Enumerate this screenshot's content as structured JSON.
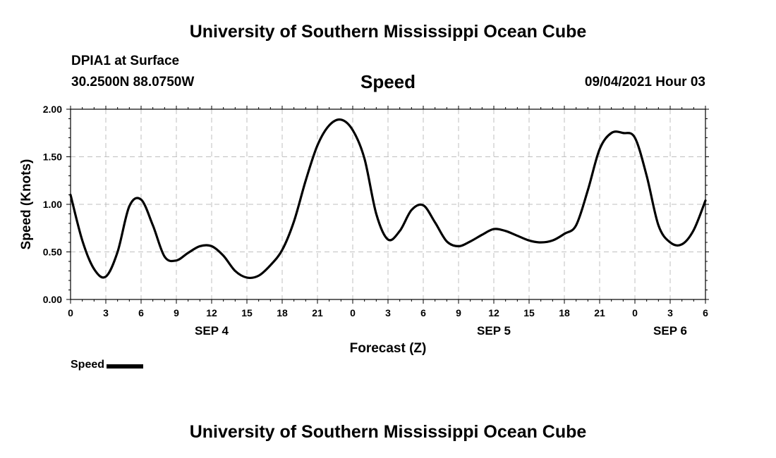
{
  "header": {
    "banner": "University of Southern Mississippi Ocean Cube",
    "station": "DPIA1 at Surface",
    "coords": "30.2500N  88.0750W",
    "plot_title": "Speed",
    "timestamp": "09/04/2021 Hour 03"
  },
  "footer": {
    "banner": "University of Southern Mississippi Ocean Cube"
  },
  "legend": {
    "label": "Speed",
    "color": "#000000"
  },
  "chart_data": {
    "type": "line",
    "title": "Speed",
    "xlabel": "Forecast (Z)",
    "ylabel": "Speed (Knots)",
    "xlim": [
      0,
      54
    ],
    "ylim": [
      0,
      2
    ],
    "grid": true,
    "legend_position": "bottom-left",
    "x_ticks": [
      0,
      3,
      6,
      9,
      12,
      15,
      18,
      21,
      24,
      27,
      30,
      33,
      36,
      39,
      42,
      45,
      48,
      51,
      54
    ],
    "x_tick_labels": [
      "0",
      "3",
      "6",
      "9",
      "12",
      "15",
      "18",
      "21",
      "0",
      "3",
      "6",
      "9",
      "12",
      "15",
      "18",
      "21",
      "0",
      "3",
      "6"
    ],
    "y_ticks": [
      0,
      0.5,
      1,
      1.5,
      2
    ],
    "y_tick_labels": [
      "0.00",
      "0.50",
      "1.00",
      "1.50",
      "2.00"
    ],
    "date_labels": [
      {
        "label": "SEP 4",
        "x": 12
      },
      {
        "label": "SEP 5",
        "x": 36
      },
      {
        "label": "SEP 6",
        "x": 51
      }
    ],
    "series": [
      {
        "name": "Speed",
        "color": "#000000",
        "x": [
          0,
          1,
          2,
          3,
          4,
          5,
          6,
          7,
          8,
          9,
          10,
          11,
          12,
          13,
          14,
          15,
          16,
          17,
          18,
          19,
          20,
          21,
          22,
          23,
          24,
          25,
          26,
          27,
          28,
          29,
          30,
          31,
          32,
          33,
          34,
          35,
          36,
          37,
          38,
          39,
          40,
          41,
          42,
          43,
          44,
          45,
          46,
          47,
          48,
          49,
          50,
          51,
          52,
          53,
          54
        ],
        "y": [
          1.1,
          0.62,
          0.32,
          0.24,
          0.5,
          0.98,
          1.05,
          0.78,
          0.45,
          0.41,
          0.49,
          0.56,
          0.56,
          0.46,
          0.3,
          0.23,
          0.25,
          0.36,
          0.52,
          0.82,
          1.25,
          1.62,
          1.83,
          1.89,
          1.78,
          1.48,
          0.9,
          0.63,
          0.72,
          0.94,
          0.99,
          0.81,
          0.61,
          0.56,
          0.61,
          0.68,
          0.74,
          0.72,
          0.67,
          0.62,
          0.6,
          0.62,
          0.69,
          0.78,
          1.15,
          1.58,
          1.75,
          1.75,
          1.7,
          1.3,
          0.78,
          0.6,
          0.58,
          0.73,
          1.04
        ]
      }
    ]
  }
}
